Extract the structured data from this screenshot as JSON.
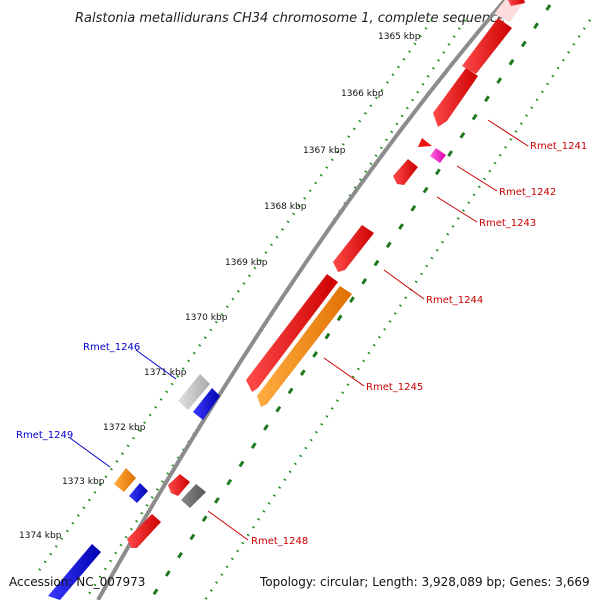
{
  "title": "Ralstonia metallidurans CH34 chromosome 1, complete sequence",
  "footer": {
    "accession": "Accession: NC_007973",
    "info": "Topology: circular; Length: 3,928,089 bp; Genes: 3,669"
  },
  "ticks": [
    "1365 kbp",
    "1366 kbp",
    "1367 kbp",
    "1368 kbp",
    "1369 kbp",
    "1370 kbp",
    "1371 kbp",
    "1372 kbp",
    "1373 kbp",
    "1374 kbp"
  ],
  "labels": [
    {
      "text": "Rmet_1241",
      "color": "#cc0000"
    },
    {
      "text": "Rmet_1242",
      "color": "#cc0000"
    },
    {
      "text": "Rmet_1243",
      "color": "#cc0000"
    },
    {
      "text": "Rmet_1244",
      "color": "#cc0000"
    },
    {
      "text": "Rmet_1245",
      "color": "#cc0000"
    },
    {
      "text": "Rmet_1246",
      "color": "#0000cc"
    },
    {
      "text": "Rmet_1248",
      "color": "#cc0000"
    },
    {
      "text": "Rmet_1249",
      "color": "#0000cc"
    }
  ],
  "colors": {
    "backbone": "#8c8c8c",
    "dots_outer": "#1a8a1a",
    "dashes": "#1f7a1f",
    "red": "#ee0000",
    "orange": "#ff8c00",
    "blue": "#0000ee",
    "magenta": "#ff33cc",
    "light_gray": "#c8c8c8",
    "dark_gray": "#707070"
  }
}
